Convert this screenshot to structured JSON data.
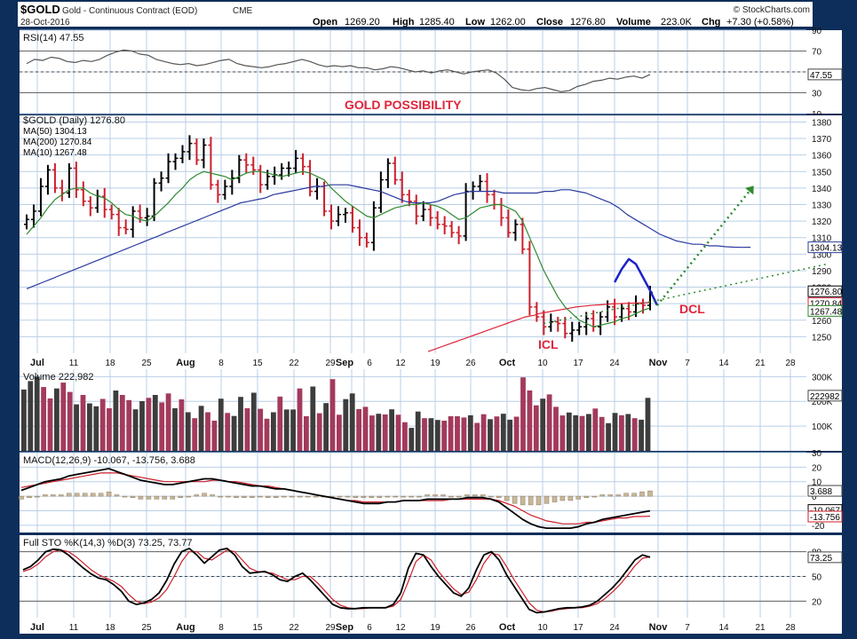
{
  "header": {
    "symbol": "$GOLD",
    "description": "Gold - Continuous Contract (EOD)",
    "exchange": "CME",
    "date": "28-Oct-2016",
    "watermark": "© StockCharts.com",
    "open_label": "Open",
    "open_value": "1269.20",
    "high_label": "High",
    "high_value": "1285.40",
    "low_label": "Low",
    "low_value": "1262.00",
    "close_label": "Close",
    "close_value": "1276.80",
    "volume_label": "Volume",
    "volume_value": "223.0K",
    "chg_label": "Chg",
    "chg_value": "+7.30 (+0.58%)"
  },
  "colors": {
    "frame": "#0d2e5a",
    "panel_bg": "#ffffff",
    "grid": "#b9cfe6",
    "up_bar": "#000000",
    "down_bar": "#cc1f2a",
    "ma50": "#2b3a9e",
    "ma200": "#e0253a",
    "ma10": "#2f8a2f",
    "vol_up": "#3d3d3d",
    "vol_down": "#a33a5c",
    "macd_line": "#000000",
    "macd_signal": "#cc1f2a",
    "macd_hist": "#c9b79a",
    "sto_k": "#000000",
    "sto_d": "#cc1f2a",
    "annotation": "#e0253a",
    "cycle_arc": "#1e23c8",
    "projection": "#2f8a2f"
  },
  "x_axis": {
    "labels": [
      "Jul",
      "11",
      "18",
      "25",
      "Aug",
      "8",
      "15",
      "22",
      "29",
      "Sep",
      "6",
      "12",
      "19",
      "26",
      "Oct",
      "10",
      "17",
      "24",
      "Nov",
      "7",
      "14",
      "21",
      "28"
    ],
    "bold": [
      "Jul",
      "Aug",
      "Sep",
      "Oct",
      "Nov"
    ]
  },
  "chart_data": {
    "type": "line",
    "panels": {
      "rsi": {
        "label": "RSI(14) 47.55",
        "ylim": [
          10,
          90
        ],
        "ticks": [
          "90",
          "70",
          "50",
          "30",
          "10"
        ],
        "current_label": "47.55",
        "values": [
          58,
          62,
          61,
          64,
          63,
          60,
          59,
          61,
          60,
          62,
          66,
          69,
          71,
          70,
          67,
          66,
          62,
          60,
          58,
          57,
          58,
          56,
          57,
          59,
          61,
          62,
          58,
          56,
          55,
          54,
          55,
          57,
          58,
          60,
          62,
          60,
          57,
          55,
          56,
          55,
          56,
          54,
          54,
          52,
          53,
          55,
          54,
          52,
          50,
          51,
          49,
          51,
          52,
          50,
          48,
          50,
          51,
          52,
          49,
          43,
          35,
          33,
          32,
          34,
          35,
          33,
          31,
          32,
          36,
          38,
          41,
          42,
          44,
          43,
          45,
          46,
          44,
          47.55
        ]
      },
      "price": {
        "label": "$GOLD (Daily) 1276.80",
        "ma50_label": "MA(50) 1304.13",
        "ma200_label": "MA(200) 1270.84",
        "ma10_label": "MA(10) 1267.48",
        "ylim": [
          1240,
          1384
        ],
        "ticks": [
          "1380",
          "1370",
          "1360",
          "1350",
          "1340",
          "1330",
          "1320",
          "1310",
          "1300",
          "1290",
          "1280",
          "1270",
          "1260",
          "1250"
        ],
        "box_labels": {
          "ma50": "1304.13",
          "close": "1276.80",
          "ma200": "1270.84",
          "ma10": "1267.48"
        },
        "annotation_title": "GOLD POSSIBILITY",
        "annotation_icl": "ICL",
        "annotation_dcl": "DCL",
        "closes": [
          1321,
          1326,
          1341,
          1351,
          1340,
          1337,
          1352,
          1339,
          1332,
          1328,
          1335,
          1327,
          1324,
          1316,
          1315,
          1326,
          1322,
          1323,
          1343,
          1346,
          1356,
          1358,
          1362,
          1367,
          1357,
          1366,
          1342,
          1336,
          1341,
          1346,
          1357,
          1354,
          1351,
          1342,
          1347,
          1348,
          1352,
          1352,
          1358,
          1353,
          1338,
          1341,
          1326,
          1320,
          1324,
          1325,
          1316,
          1310,
          1307,
          1328,
          1345,
          1355,
          1345,
          1336,
          1332,
          1323,
          1327,
          1322,
          1318,
          1317,
          1313,
          1311,
          1338,
          1341,
          1344,
          1336,
          1330,
          1322,
          1313,
          1318,
          1303,
          1268,
          1262,
          1256,
          1259,
          1258,
          1252,
          1254,
          1256,
          1261,
          1256,
          1262,
          1268,
          1262,
          1267,
          1265,
          1270,
          1269,
          1276.8
        ],
        "ma50": [
          1279,
          1281,
          1283,
          1285,
          1287,
          1289,
          1291,
          1293,
          1295,
          1297,
          1299,
          1301,
          1303,
          1305,
          1307,
          1309,
          1311,
          1313,
          1315,
          1317,
          1319,
          1321,
          1323,
          1325,
          1327,
          1329,
          1331,
          1332,
          1333,
          1334,
          1336,
          1337,
          1338,
          1339,
          1340,
          1341,
          1341,
          1342,
          1342,
          1342,
          1341,
          1340,
          1339,
          1338,
          1336,
          1334,
          1332,
          1331,
          1331,
          1331,
          1332,
          1334,
          1336,
          1337,
          1338,
          1338,
          1338,
          1338,
          1337,
          1337,
          1337,
          1337,
          1337,
          1338,
          1338,
          1339,
          1339,
          1338,
          1337,
          1335,
          1333,
          1331,
          1328,
          1324,
          1321,
          1318,
          1315,
          1312,
          1310,
          1308,
          1307,
          1306,
          1306,
          1305,
          1305,
          1304.5,
          1304.2,
          1304.1,
          1304.13
        ],
        "ma200": [
          1241,
          1242,
          1243,
          1244,
          1245,
          1246,
          1247,
          1248,
          1249,
          1250,
          1251,
          1252,
          1253,
          1254,
          1255,
          1256,
          1257,
          1258,
          1259,
          1260,
          1261,
          1262,
          1262.5,
          1263,
          1264,
          1264.5,
          1265,
          1265.5,
          1266,
          1266.5,
          1267,
          1267.5,
          1268,
          1268.3,
          1268.6,
          1268.9,
          1269.1,
          1269.3,
          1269.5,
          1269.7,
          1269.9,
          1270.0,
          1270.1,
          1270.2,
          1270.3,
          1270.4,
          1270.5,
          1270.6,
          1270.84
        ],
        "ma10": [
          1312,
          1317,
          1322,
          1328,
          1333,
          1336,
          1339,
          1340,
          1340,
          1337,
          1335,
          1334,
          1331,
          1327,
          1324,
          1323,
          1321,
          1320,
          1323,
          1327,
          1331,
          1336,
          1340,
          1345,
          1348,
          1350,
          1349,
          1348,
          1347,
          1345,
          1347,
          1349,
          1350,
          1350,
          1349,
          1348,
          1347,
          1348,
          1349,
          1350,
          1349,
          1347,
          1345,
          1340,
          1336,
          1332,
          1329,
          1326,
          1323,
          1322,
          1324,
          1326,
          1328,
          1329,
          1330,
          1330,
          1331,
          1330,
          1329,
          1327,
          1324,
          1321,
          1322,
          1325,
          1328,
          1329,
          1330,
          1330,
          1328,
          1326,
          1320,
          1310,
          1300,
          1290,
          1282,
          1274,
          1268,
          1264,
          1260,
          1258,
          1256,
          1257,
          1258,
          1259,
          1261,
          1262,
          1264,
          1266,
          1267.48
        ],
        "projection": {
          "arc_points": [
            [
              83,
              1283
            ],
            [
              84,
              1291
            ],
            [
              85,
              1297
            ],
            [
              86,
              1294
            ],
            [
              87,
              1286
            ],
            [
              88,
              1278
            ],
            [
              89,
              1269
            ]
          ],
          "trend_from": [
            89,
            1272
          ],
          "trend_to": [
            113,
            1294
          ],
          "arrow_from": [
            89,
            1269
          ],
          "arrow_to": [
            102,
            1338
          ]
        }
      },
      "volume": {
        "label": "Volume 222,982",
        "ylim": [
          0,
          330
        ],
        "ticks": [
          "300K",
          "200K",
          "100K"
        ],
        "current_label": "222982",
        "values": [
          248,
          282,
          300,
          258,
          212,
          252,
          276,
          238,
          188,
          226,
          192,
          180,
          210,
          172,
          244,
          226,
          205,
          168,
          201,
          214,
          226,
          196,
          232,
          172,
          208,
          156,
          132,
          182,
          156,
          122,
          211,
          153,
          141,
          218,
          172,
          235,
          170,
          130,
          156,
          219,
          167,
          167,
          252,
          140,
          260,
          152,
          193,
          290,
          146,
          209,
          232,
          169,
          178,
          143,
          150,
          147,
          168,
          146,
          116,
          93,
          159,
          132,
          132,
          125,
          122,
          140,
          140,
          135,
          144,
          113,
          148,
          128,
          139,
          150,
          126,
          138,
          297,
          244,
          184,
          211,
          228,
          178,
          143,
          155,
          144,
          141,
          149,
          171,
          137,
          112,
          153,
          144,
          149,
          132,
          126,
          214
        ],
        "up": [
          1,
          1,
          1,
          0,
          0,
          1,
          0,
          0,
          1,
          0,
          1,
          1,
          0,
          0,
          1,
          0,
          0,
          1,
          1,
          0,
          1,
          0,
          0,
          1,
          0,
          1,
          0,
          1,
          0,
          0,
          1,
          0,
          1,
          1,
          0,
          1,
          0,
          0,
          1,
          0,
          1,
          1,
          0,
          0,
          1,
          0,
          1,
          0,
          0,
          1,
          1,
          0,
          0,
          0,
          1,
          0,
          1,
          0,
          0,
          1,
          1,
          0,
          1,
          1,
          0,
          0,
          0,
          0,
          1,
          0,
          0,
          1,
          0,
          1,
          1,
          0,
          0,
          0,
          0,
          1,
          0,
          0,
          0,
          1,
          1,
          0,
          1,
          0,
          0,
          1,
          1,
          0,
          1,
          0,
          1,
          1
        ]
      },
      "macd": {
        "label": "MACD(12,26,9) -10.067, -13.756, 3.688",
        "ylim": [
          -25,
          30
        ],
        "ticks": [
          "30",
          "20",
          "10",
          "0",
          "-10",
          "-20"
        ],
        "box_labels": {
          "hist": "3.688",
          "macd": "-10.067",
          "signal": "-13.756"
        },
        "macd": [
          4,
          6,
          8,
          10,
          11,
          12,
          14,
          15,
          16,
          17,
          18,
          19,
          17,
          15,
          13,
          11,
          10,
          9,
          8,
          8,
          9,
          10,
          11,
          12,
          12,
          11,
          10,
          9,
          8,
          7,
          7,
          6,
          5,
          5,
          4,
          3,
          2,
          1,
          0,
          -1,
          -2,
          -3,
          -4,
          -5,
          -5,
          -5,
          -4,
          -4,
          -3,
          -3,
          -3,
          -2,
          -2,
          -2,
          -2,
          -2,
          -1,
          -1,
          -1,
          -2,
          -4,
          -8,
          -12,
          -16,
          -19,
          -21,
          -22,
          -22,
          -22,
          -22,
          -21,
          -19,
          -18,
          -16,
          -15,
          -14,
          -13,
          -12,
          -11,
          -10.067
        ],
        "signal": [
          6,
          7,
          8,
          9,
          10,
          11,
          12,
          13,
          14,
          15,
          16,
          16,
          16,
          15,
          14,
          13,
          12,
          11,
          10,
          10,
          10,
          10,
          10,
          10,
          11,
          11,
          10,
          10,
          9,
          8,
          7,
          7,
          6,
          5,
          4,
          3,
          2,
          1,
          0,
          -1,
          -2,
          -3,
          -3,
          -4,
          -4,
          -4,
          -4,
          -4,
          -3,
          -3,
          -3,
          -3,
          -3,
          -3,
          -2,
          -2,
          -2,
          -2,
          -2,
          -2,
          -3,
          -5,
          -7,
          -10,
          -13,
          -15,
          -17,
          -18,
          -19,
          -19,
          -19,
          -18,
          -18,
          -17,
          -16,
          -15,
          -15,
          -14,
          -14,
          -13.756
        ]
      },
      "sto": {
        "label": "Full STO %K(14,3) %D(3) 73.25, 73.77",
        "ylim": [
          0,
          100
        ],
        "ticks": [
          "80",
          "50",
          "20"
        ],
        "current_label": "73.25",
        "k": [
          58,
          62,
          70,
          80,
          83,
          82,
          76,
          68,
          60,
          53,
          48,
          46,
          40,
          32,
          20,
          16,
          18,
          22,
          30,
          45,
          65,
          80,
          84,
          76,
          66,
          74,
          82,
          84,
          76,
          62,
          54,
          55,
          56,
          52,
          46,
          44,
          50,
          54,
          46,
          36,
          26,
          16,
          12,
          11,
          11,
          12,
          12,
          12,
          12,
          16,
          30,
          60,
          78,
          76,
          62,
          50,
          40,
          30,
          26,
          36,
          58,
          76,
          80,
          70,
          52,
          38,
          24,
          10,
          6,
          7,
          9,
          11,
          12,
          12,
          13,
          15,
          20,
          28,
          36,
          46,
          58,
          70,
          76,
          73.25
        ],
        "d": [
          56,
          59,
          65,
          74,
          80,
          82,
          80,
          74,
          66,
          58,
          52,
          48,
          44,
          38,
          28,
          20,
          17,
          19,
          24,
          34,
          50,
          68,
          80,
          80,
          72,
          70,
          76,
          82,
          80,
          70,
          60,
          56,
          55,
          54,
          50,
          46,
          46,
          50,
          50,
          42,
          32,
          22,
          15,
          12,
          11,
          11,
          12,
          12,
          12,
          14,
          22,
          44,
          68,
          76,
          70,
          56,
          45,
          35,
          28,
          31,
          46,
          66,
          78,
          76,
          62,
          46,
          32,
          18,
          9,
          7,
          8,
          10,
          11,
          12,
          12,
          14,
          17,
          23,
          31,
          40,
          51,
          63,
          72,
          73.77
        ]
      }
    }
  }
}
